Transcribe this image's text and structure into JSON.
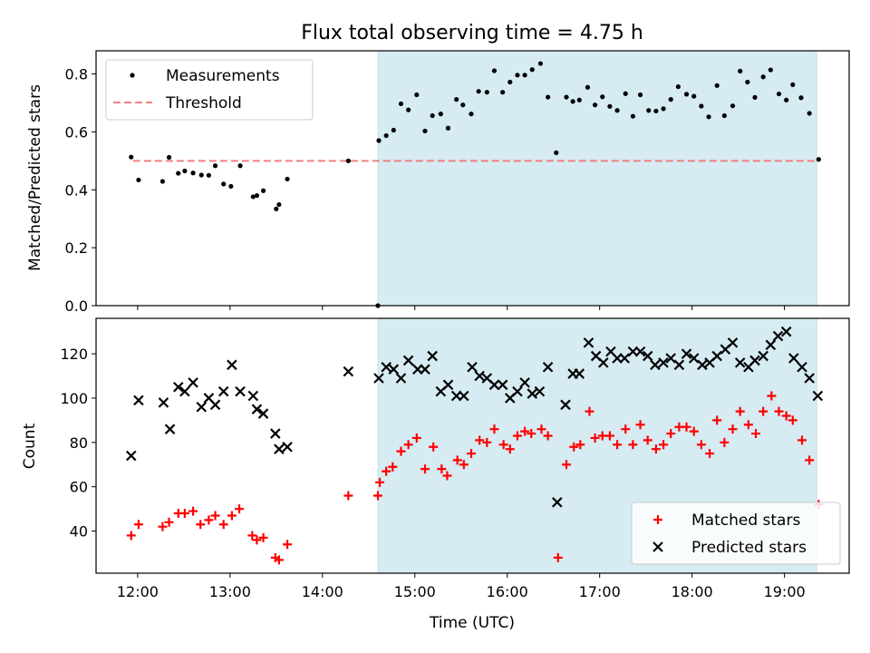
{
  "figure": {
    "title": "Flux total observing time = 4.75 h"
  },
  "chart_data": [
    {
      "type": "scatter",
      "panel": "top",
      "title": "Flux total observing time = 4.75 h",
      "xlabel": "",
      "ylabel": "Matched/Predicted stars",
      "xlim": [
        11.55,
        19.7
      ],
      "ylim": [
        0,
        0.88
      ],
      "yticks": [
        0.0,
        0.2,
        0.4,
        0.6,
        0.8
      ],
      "ytick_labels": [
        "0.0",
        "0.2",
        "0.4",
        "0.6",
        "0.8"
      ],
      "xticks": [
        12,
        13,
        14,
        15,
        16,
        17,
        18,
        19
      ],
      "shaded_region": {
        "x": [
          14.6,
          19.35
        ],
        "color": "#add8e6"
      },
      "legend": {
        "location": "upper left",
        "entries": [
          "Measurements",
          "Threshold"
        ]
      },
      "threshold": {
        "name": "Threshold",
        "y": 0.5,
        "x_range": [
          11.95,
          19.37
        ],
        "color": "#f08080",
        "style": "dashed"
      },
      "series": [
        {
          "name": "Measurements",
          "color": "#000000",
          "points": [
            [
              11.93,
              0.513
            ],
            [
              12.01,
              0.434
            ],
            [
              12.27,
              0.429
            ],
            [
              12.34,
              0.512
            ],
            [
              12.44,
              0.457
            ],
            [
              12.51,
              0.465
            ],
            [
              12.6,
              0.458
            ],
            [
              12.69,
              0.451
            ],
            [
              12.77,
              0.45
            ],
            [
              12.84,
              0.483
            ],
            [
              12.93,
              0.42
            ],
            [
              13.01,
              0.412
            ],
            [
              13.11,
              0.483
            ],
            [
              13.25,
              0.376
            ],
            [
              13.29,
              0.38
            ],
            [
              13.36,
              0.397
            ],
            [
              13.5,
              0.334
            ],
            [
              13.53,
              0.349
            ],
            [
              13.62,
              0.437
            ],
            [
              14.28,
              0.5
            ],
            [
              14.6,
              0.0
            ],
            [
              14.61,
              0.57
            ],
            [
              14.69,
              0.587
            ],
            [
              14.77,
              0.606
            ],
            [
              14.85,
              0.697
            ],
            [
              14.93,
              0.676
            ],
            [
              15.02,
              0.728
            ],
            [
              15.11,
              0.603
            ],
            [
              15.19,
              0.656
            ],
            [
              15.28,
              0.662
            ],
            [
              15.36,
              0.613
            ],
            [
              15.45,
              0.712
            ],
            [
              15.52,
              0.693
            ],
            [
              15.61,
              0.662
            ],
            [
              15.69,
              0.74
            ],
            [
              15.78,
              0.737
            ],
            [
              15.86,
              0.811
            ],
            [
              15.95,
              0.737
            ],
            [
              16.03,
              0.772
            ],
            [
              16.11,
              0.796
            ],
            [
              16.19,
              0.796
            ],
            [
              16.27,
              0.815
            ],
            [
              16.36,
              0.836
            ],
            [
              16.44,
              0.72
            ],
            [
              16.53,
              0.528
            ],
            [
              16.64,
              0.72
            ],
            [
              16.71,
              0.705
            ],
            [
              16.78,
              0.71
            ],
            [
              16.87,
              0.754
            ],
            [
              16.95,
              0.693
            ],
            [
              17.03,
              0.721
            ],
            [
              17.11,
              0.688
            ],
            [
              17.19,
              0.674
            ],
            [
              17.28,
              0.732
            ],
            [
              17.36,
              0.654
            ],
            [
              17.44,
              0.728
            ],
            [
              17.53,
              0.674
            ],
            [
              17.61,
              0.672
            ],
            [
              17.69,
              0.68
            ],
            [
              17.77,
              0.712
            ],
            [
              17.85,
              0.756
            ],
            [
              17.94,
              0.73
            ],
            [
              18.02,
              0.723
            ],
            [
              18.1,
              0.689
            ],
            [
              18.18,
              0.652
            ],
            [
              18.27,
              0.76
            ],
            [
              18.35,
              0.656
            ],
            [
              18.44,
              0.69
            ],
            [
              18.52,
              0.81
            ],
            [
              18.6,
              0.772
            ],
            [
              18.68,
              0.719
            ],
            [
              18.77,
              0.79
            ],
            [
              18.85,
              0.814
            ],
            [
              18.94,
              0.731
            ],
            [
              19.02,
              0.71
            ],
            [
              19.09,
              0.763
            ],
            [
              19.18,
              0.718
            ],
            [
              19.27,
              0.664
            ],
            [
              19.37,
              0.505
            ]
          ]
        }
      ]
    },
    {
      "type": "scatter",
      "panel": "bottom",
      "xlabel": "Time (UTC)",
      "ylabel": "Count",
      "xlim": [
        11.55,
        19.7
      ],
      "ylim": [
        21,
        136
      ],
      "yticks": [
        40,
        60,
        80,
        100,
        120
      ],
      "ytick_labels": [
        "40",
        "60",
        "80",
        "100",
        "120"
      ],
      "xticks": [
        12,
        13,
        14,
        15,
        16,
        17,
        18,
        19
      ],
      "xtick_labels": [
        "12:00",
        "13:00",
        "14:00",
        "15:00",
        "16:00",
        "17:00",
        "18:00",
        "19:00"
      ],
      "shaded_region": {
        "x": [
          14.6,
          19.35
        ],
        "color": "#add8e6"
      },
      "legend": {
        "location": "lower right",
        "entries": [
          "Matched stars",
          "Predicted stars"
        ]
      },
      "series": [
        {
          "name": "Matched stars",
          "marker": "+",
          "color": "#ff0000",
          "points": [
            [
              11.93,
              38
            ],
            [
              12.01,
              43
            ],
            [
              12.27,
              42
            ],
            [
              12.34,
              44
            ],
            [
              12.44,
              48
            ],
            [
              12.51,
              48
            ],
            [
              12.6,
              49
            ],
            [
              12.68,
              43
            ],
            [
              12.77,
              45
            ],
            [
              12.84,
              47
            ],
            [
              12.93,
              43
            ],
            [
              13.02,
              47
            ],
            [
              13.1,
              50
            ],
            [
              13.24,
              38
            ],
            [
              13.29,
              36
            ],
            [
              13.36,
              37
            ],
            [
              13.49,
              28
            ],
            [
              13.53,
              27
            ],
            [
              13.62,
              34
            ],
            [
              14.28,
              56
            ],
            [
              14.6,
              56
            ],
            [
              14.62,
              62
            ],
            [
              14.69,
              67
            ],
            [
              14.76,
              69
            ],
            [
              14.85,
              76
            ],
            [
              14.93,
              79
            ],
            [
              15.02,
              82
            ],
            [
              15.11,
              68
            ],
            [
              15.2,
              78
            ],
            [
              15.29,
              68
            ],
            [
              15.35,
              65
            ],
            [
              15.46,
              72
            ],
            [
              15.53,
              70
            ],
            [
              15.61,
              75
            ],
            [
              15.7,
              81
            ],
            [
              15.78,
              80
            ],
            [
              15.86,
              86
            ],
            [
              15.96,
              79
            ],
            [
              16.03,
              77
            ],
            [
              16.11,
              83
            ],
            [
              16.19,
              85
            ],
            [
              16.26,
              84
            ],
            [
              16.37,
              86
            ],
            [
              16.44,
              83
            ],
            [
              16.55,
              28
            ],
            [
              16.64,
              70
            ],
            [
              16.72,
              78
            ],
            [
              16.79,
              79
            ],
            [
              16.89,
              94
            ],
            [
              16.95,
              82
            ],
            [
              17.03,
              83
            ],
            [
              17.11,
              83
            ],
            [
              17.19,
              79
            ],
            [
              17.28,
              86
            ],
            [
              17.36,
              79
            ],
            [
              17.44,
              88
            ],
            [
              17.52,
              81
            ],
            [
              17.61,
              77
            ],
            [
              17.69,
              79
            ],
            [
              17.77,
              84
            ],
            [
              17.86,
              87
            ],
            [
              17.94,
              87
            ],
            [
              18.02,
              85
            ],
            [
              18.1,
              79
            ],
            [
              18.19,
              75
            ],
            [
              18.27,
              90
            ],
            [
              18.35,
              80
            ],
            [
              18.44,
              86
            ],
            [
              18.52,
              94
            ],
            [
              18.61,
              88
            ],
            [
              18.69,
              84
            ],
            [
              18.77,
              94
            ],
            [
              18.86,
              101
            ],
            [
              18.94,
              94
            ],
            [
              19.02,
              92
            ],
            [
              19.09,
              90
            ],
            [
              19.19,
              81
            ],
            [
              19.27,
              72
            ],
            [
              19.37,
              52
            ]
          ]
        },
        {
          "name": "Predicted stars",
          "marker": "x",
          "color": "#000000",
          "points": [
            [
              11.93,
              74
            ],
            [
              12.01,
              99
            ],
            [
              12.28,
              98
            ],
            [
              12.35,
              86
            ],
            [
              12.44,
              105
            ],
            [
              12.51,
              103
            ],
            [
              12.6,
              107
            ],
            [
              12.69,
              96
            ],
            [
              12.77,
              100
            ],
            [
              12.84,
              97
            ],
            [
              12.93,
              103
            ],
            [
              13.02,
              115
            ],
            [
              13.11,
              103
            ],
            [
              13.25,
              101
            ],
            [
              13.29,
              95
            ],
            [
              13.36,
              93
            ],
            [
              13.49,
              84
            ],
            [
              13.53,
              77
            ],
            [
              13.62,
              78
            ],
            [
              14.28,
              112
            ],
            [
              14.61,
              109
            ],
            [
              14.69,
              114
            ],
            [
              14.77,
              113
            ],
            [
              14.85,
              109
            ],
            [
              14.93,
              117
            ],
            [
              15.03,
              113
            ],
            [
              15.11,
              113
            ],
            [
              15.19,
              119
            ],
            [
              15.28,
              103
            ],
            [
              15.36,
              106
            ],
            [
              15.45,
              101
            ],
            [
              15.53,
              101
            ],
            [
              15.62,
              114
            ],
            [
              15.7,
              110
            ],
            [
              15.78,
              109
            ],
            [
              15.86,
              106
            ],
            [
              15.95,
              106
            ],
            [
              16.03,
              100
            ],
            [
              16.11,
              103
            ],
            [
              16.19,
              107
            ],
            [
              16.27,
              102
            ],
            [
              16.35,
              103
            ],
            [
              16.44,
              114
            ],
            [
              16.54,
              53
            ],
            [
              16.63,
              97
            ],
            [
              16.71,
              111
            ],
            [
              16.78,
              111
            ],
            [
              16.88,
              125
            ],
            [
              16.96,
              119
            ],
            [
              17.04,
              116
            ],
            [
              17.12,
              121
            ],
            [
              17.19,
              118
            ],
            [
              17.27,
              118
            ],
            [
              17.36,
              121
            ],
            [
              17.44,
              121
            ],
            [
              17.52,
              119
            ],
            [
              17.6,
              115
            ],
            [
              17.69,
              116
            ],
            [
              17.77,
              118
            ],
            [
              17.86,
              115
            ],
            [
              17.94,
              120
            ],
            [
              18.02,
              118
            ],
            [
              18.11,
              115
            ],
            [
              18.19,
              116
            ],
            [
              18.27,
              119
            ],
            [
              18.36,
              122
            ],
            [
              18.44,
              125
            ],
            [
              18.52,
              116
            ],
            [
              18.61,
              114
            ],
            [
              18.68,
              117
            ],
            [
              18.77,
              119
            ],
            [
              18.85,
              124
            ],
            [
              18.93,
              128
            ],
            [
              19.02,
              130
            ],
            [
              19.1,
              118
            ],
            [
              19.19,
              114
            ],
            [
              19.27,
              109
            ],
            [
              19.36,
              101
            ]
          ]
        }
      ]
    }
  ]
}
